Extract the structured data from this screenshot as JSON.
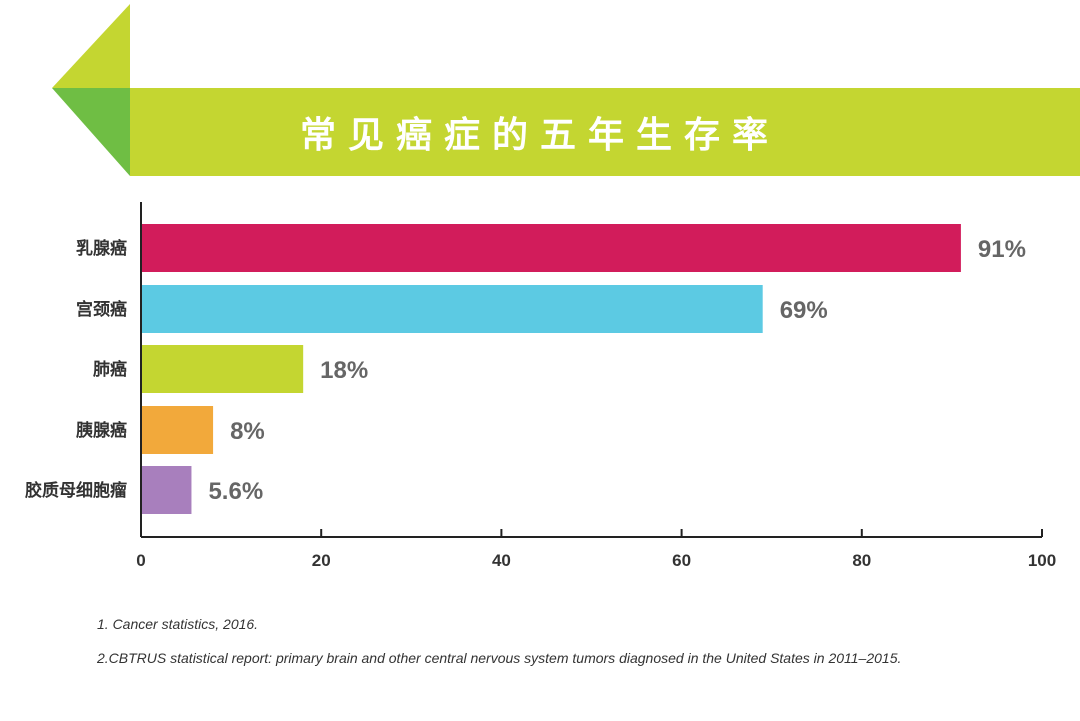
{
  "header": {
    "title": "常见癌症的五年生存率"
  },
  "colors": {
    "banner_main": "#c4d631",
    "banner_dark": "#6fbe44",
    "axis": "#222222",
    "category_text": "#333333",
    "value_text": "#666666"
  },
  "chart_data": {
    "type": "bar",
    "orientation": "horizontal",
    "categories": [
      "乳腺癌",
      "宫颈癌",
      "肺癌",
      "胰腺癌",
      "胶质母细胞瘤"
    ],
    "values": [
      91,
      69,
      18,
      8,
      5.6
    ],
    "value_labels": [
      "91%",
      "69%",
      "18%",
      "8%",
      "5.6%"
    ],
    "bar_colors": [
      "#d21c5b",
      "#5ccae3",
      "#c4d631",
      "#f2a93b",
      "#a87fbd"
    ],
    "x_ticks": [
      "0",
      "20",
      "40",
      "60",
      "80",
      "100"
    ],
    "xlim": [
      0,
      100
    ],
    "grid": false,
    "legend": "none"
  },
  "footnotes": [
    "1. Cancer statistics, 2016.",
    "2.CBTRUS statistical report: primary brain and other central nervous system tumors diagnosed in the United States in 2011–2015."
  ]
}
